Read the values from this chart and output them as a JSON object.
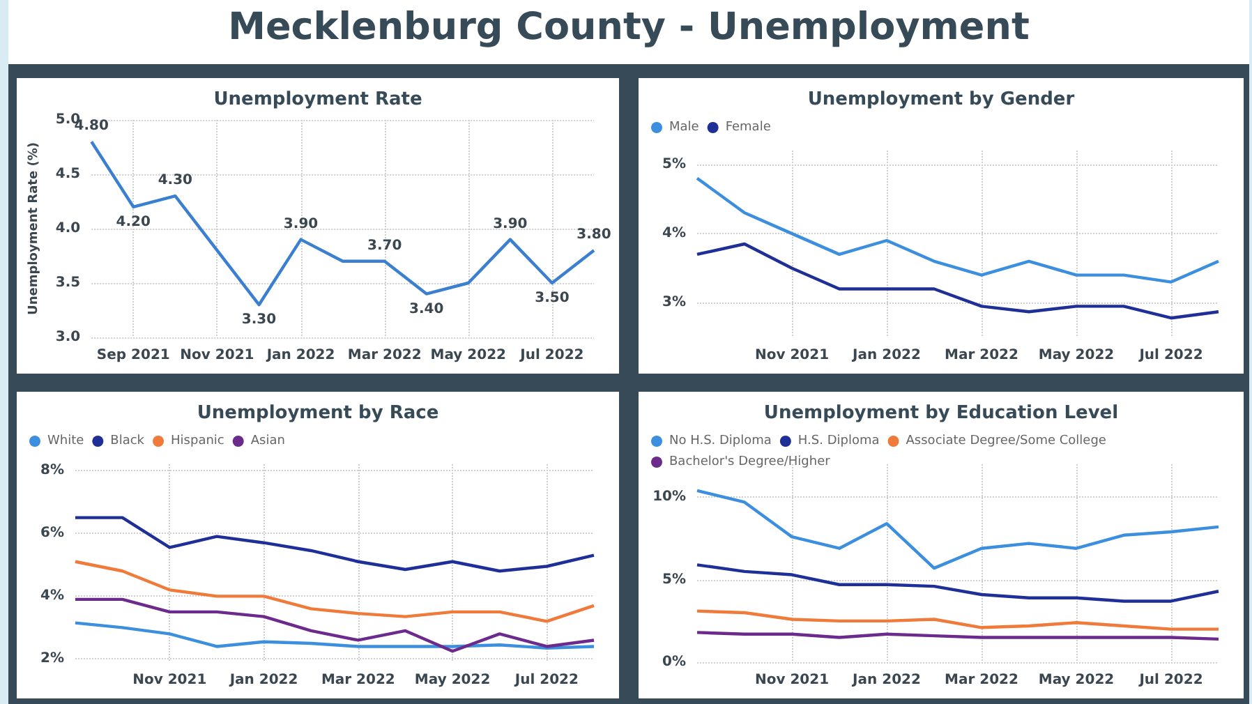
{
  "chart_data": [
    {
      "type": "other",
      "title": "Mecklenburg County - Unemployment"
    },
    {
      "type": "line",
      "title": "Unemployment Rate",
      "ylabel": "Unemployment Rate (%)",
      "categories": [
        null,
        "Sep 2021",
        null,
        "Nov 2021",
        null,
        "Jan 2022",
        null,
        "Mar 2022",
        null,
        "May 2022",
        null,
        "Jul 2022",
        null
      ],
      "series": [
        {
          "color": "#3a7fd0",
          "values": [
            4.8,
            4.2,
            4.3,
            3.8,
            3.3,
            3.9,
            3.7,
            3.7,
            3.4,
            3.5,
            3.9,
            3.5,
            3.8
          ],
          "value_labels": [
            "4.80",
            "4.20",
            "4.30",
            null,
            "3.30",
            "3.90",
            null,
            "3.70",
            "3.40",
            null,
            "3.90",
            "3.50",
            "3.80"
          ]
        }
      ],
      "ylim": [
        3,
        5
      ],
      "yticks": [
        {
          "value": 3,
          "label": "3.0"
        },
        3.5,
        {
          "value": 4,
          "label": "4.0"
        },
        4.5,
        {
          "value": 5,
          "label": "5.0"
        }
      ],
      "grid": true,
      "marker": "none"
    },
    {
      "type": "line",
      "title": "Unemployment by Gender",
      "legend": "top left",
      "categories": [
        null,
        null,
        "Nov 2021",
        null,
        "Jan 2022",
        null,
        "Mar 2022",
        null,
        "May 2022",
        null,
        "Jul 2022",
        null
      ],
      "series": [
        {
          "name": "Male",
          "color": "#3b8fde",
          "values": [
            4.8,
            4.3,
            4.0,
            3.7,
            3.9,
            3.6,
            3.4,
            3.6,
            3.4,
            3.4,
            3.3,
            3.6
          ]
        },
        {
          "name": "Female",
          "color": "#1f2f98",
          "values": [
            3.7,
            3.85,
            3.5,
            3.2,
            3.2,
            3.2,
            2.95,
            2.87,
            2.95,
            2.95,
            2.78,
            2.87
          ]
        }
      ],
      "ylim": [
        2.5,
        5.2
      ],
      "yticks": [
        {
          "value": 3,
          "label": "3%"
        },
        {
          "value": 4,
          "label": "4%"
        },
        {
          "value": 5,
          "label": "5%"
        }
      ],
      "grid": true,
      "marker": "none"
    },
    {
      "type": "line",
      "title": "Unemployment by Race",
      "legend": "top left",
      "categories": [
        null,
        null,
        "Nov 2021",
        null,
        "Jan 2022",
        null,
        "Mar 2022",
        null,
        "May 2022",
        null,
        "Jul 2022",
        null
      ],
      "series": [
        {
          "name": "White",
          "color": "#3b8fde",
          "values": [
            3.15,
            3.0,
            2.8,
            2.4,
            2.55,
            2.5,
            2.4,
            2.4,
            2.4,
            2.45,
            2.35,
            2.4
          ]
        },
        {
          "name": "Black",
          "color": "#1f2f98",
          "values": [
            6.5,
            6.5,
            5.55,
            5.9,
            5.7,
            5.45,
            5.1,
            4.85,
            5.1,
            4.8,
            4.95,
            5.3
          ]
        },
        {
          "name": "Hispanic",
          "color": "#f07a3a",
          "values": [
            5.1,
            4.8,
            4.2,
            4.0,
            4.0,
            3.6,
            3.45,
            3.35,
            3.5,
            3.5,
            3.2,
            3.7
          ]
        },
        {
          "name": "Asian",
          "color": "#6b2a8c",
          "values": [
            3.9,
            3.9,
            3.5,
            3.5,
            3.35,
            2.9,
            2.6,
            2.9,
            2.25,
            2.8,
            2.4,
            2.6
          ]
        }
      ],
      "ylim": [
        1.9,
        8.2
      ],
      "yticks": [
        {
          "value": 2,
          "label": "2%"
        },
        {
          "value": 4,
          "label": "4%"
        },
        {
          "value": 6,
          "label": "6%"
        },
        {
          "value": 8,
          "label": "8%"
        }
      ],
      "grid": true,
      "marker": "none"
    },
    {
      "type": "line",
      "title": "Unemployment by Education Level",
      "legend": "top left",
      "categories": [
        null,
        null,
        "Nov 2021",
        null,
        "Jan 2022",
        null,
        "Mar 2022",
        null,
        "May 2022",
        null,
        "Jul 2022",
        null
      ],
      "series": [
        {
          "name": "No H.S. Diploma",
          "color": "#3b8fde",
          "values": [
            10.4,
            9.7,
            7.6,
            6.9,
            8.4,
            5.7,
            6.9,
            7.2,
            6.9,
            7.7,
            7.9,
            8.2
          ]
        },
        {
          "name": "H.S. Diploma",
          "color": "#1f2f98",
          "values": [
            5.9,
            5.5,
            5.3,
            4.7,
            4.7,
            4.6,
            4.1,
            3.9,
            3.9,
            3.7,
            3.7,
            4.3
          ]
        },
        {
          "name": "Associate Degree/Some College",
          "color": "#f07a3a",
          "values": [
            3.1,
            3.0,
            2.6,
            2.5,
            2.5,
            2.6,
            2.1,
            2.2,
            2.4,
            2.2,
            2.0,
            2.0
          ]
        },
        {
          "name": "Bachelor's Degree/Higher",
          "color": "#6b2a8c",
          "values": [
            1.8,
            1.7,
            1.7,
            1.5,
            1.7,
            1.6,
            1.5,
            1.5,
            1.5,
            1.5,
            1.5,
            1.4
          ]
        }
      ],
      "ylim": [
        0,
        12
      ],
      "yticks": [
        {
          "value": 0,
          "label": "0%"
        },
        {
          "value": 5,
          "label": "5%"
        },
        {
          "value": 10,
          "label": "10%"
        }
      ],
      "grid": true,
      "marker": "none"
    }
  ]
}
